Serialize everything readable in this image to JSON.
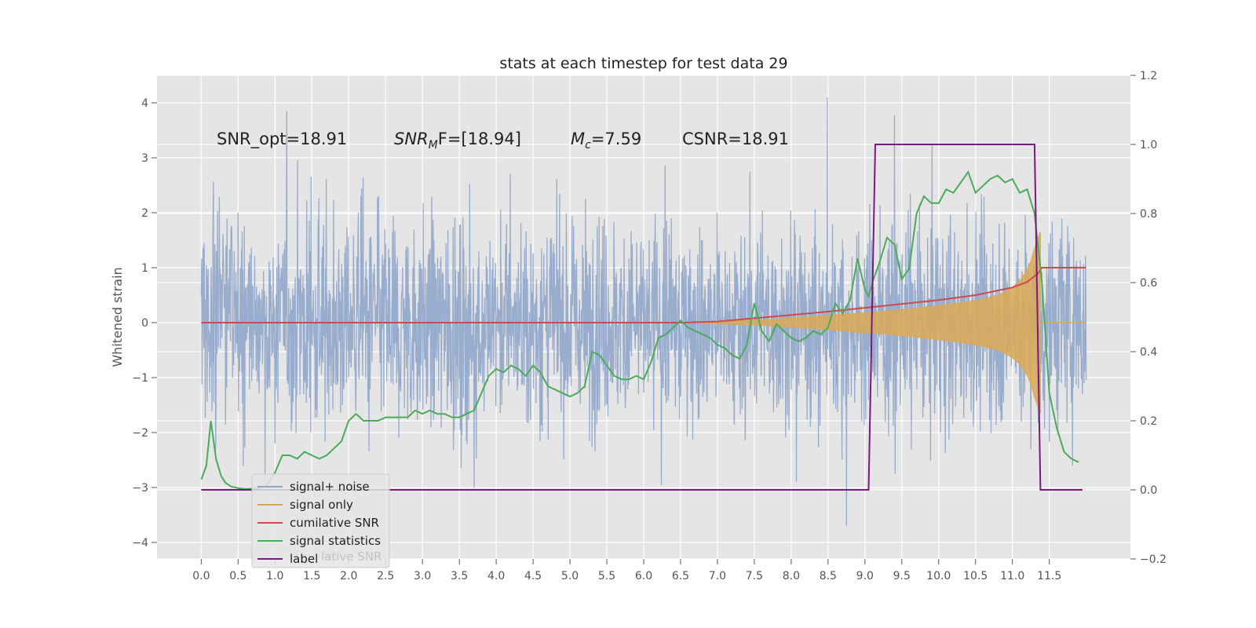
{
  "chart_data": {
    "type": "line",
    "title": "stats at each timestep for test data 29",
    "ylabel": "Whitened strain",
    "xlabel": "",
    "xlim": [
      -0.6,
      12.6
    ],
    "ylim": [
      -4.3,
      4.5
    ],
    "y2lim": [
      -0.2,
      1.2
    ],
    "grid": true,
    "xticks": [
      0.0,
      0.5,
      1.0,
      1.5,
      2.0,
      2.5,
      3.0,
      3.5,
      4.0,
      4.5,
      5.0,
      5.5,
      6.0,
      6.5,
      7.0,
      7.5,
      8.0,
      8.5,
      9.0,
      9.5,
      10.0,
      10.5,
      11.0,
      11.5
    ],
    "xtick_labels": [
      "0.0",
      "0.5",
      "1.0",
      "1.5",
      "2.0",
      "2.5",
      "3.0",
      "3.5",
      "4.0",
      "4.5",
      "5.0",
      "5.5",
      "6.0",
      "6.5",
      "7.0",
      "7.5",
      "8.0",
      "8.5",
      "9.0",
      "9.5",
      "10.0",
      "10.5",
      "11.0",
      "11.5"
    ],
    "yticks": [
      -4,
      -3,
      -2,
      -1,
      0,
      1,
      2,
      3,
      4
    ],
    "ytick_labels": [
      "−4",
      "−3",
      "−2",
      "−1",
      "0",
      "1",
      "2",
      "3",
      "4"
    ],
    "y2ticks": [
      -0.2,
      0.0,
      0.2,
      0.4,
      0.6,
      0.8,
      1.0,
      1.2
    ],
    "y2tick_labels": [
      "−0.2",
      "0.0",
      "0.2",
      "0.4",
      "0.6",
      "0.8",
      "1.0",
      "1.2"
    ],
    "annotations": {
      "snr_opt": "SNR_opt=18.91",
      "snr_mf_main": "SNR",
      "snr_mf_sub": "M",
      "snr_mf_rest": "F=[18.94]",
      "mc_main": "M",
      "mc_sub": "c",
      "mc_rest": "=7.59",
      "csnr": "CSNR=18.91"
    },
    "legend": {
      "position": "lower-left",
      "entries": [
        "signal+ noise",
        "signal only",
        "cumilative SNR",
        "signal statistics",
        "label"
      ],
      "ghost_text": "lative SNR"
    },
    "series": [
      {
        "name": "signal+ noise",
        "axis": "left",
        "color": "#8fa5cb",
        "style": "dense noise between about -2.9 and +2.9 with spikes up to 4.1 and down to -3.7"
      },
      {
        "name": "signal only",
        "axis": "left",
        "color": "#dba955",
        "envelope_x": [
          6.8,
          7.2,
          7.6,
          8.0,
          8.4,
          8.8,
          9.2,
          9.6,
          10.0,
          10.4,
          10.6,
          10.8,
          10.9,
          11.0,
          11.1,
          11.2,
          11.25,
          11.3,
          11.35,
          11.38
        ],
        "envelope_amp": [
          0.01,
          0.03,
          0.05,
          0.08,
          0.12,
          0.16,
          0.2,
          0.25,
          0.31,
          0.38,
          0.43,
          0.5,
          0.56,
          0.64,
          0.76,
          0.96,
          1.12,
          1.36,
          1.55,
          1.65
        ]
      },
      {
        "name": "cumilative SNR",
        "axis": "left",
        "color": "#cc4b4b",
        "x": [
          0.0,
          6.5,
          7.0,
          7.5,
          8.0,
          8.5,
          9.0,
          9.5,
          10.0,
          10.5,
          11.0,
          11.2,
          11.35,
          11.4,
          12.0
        ],
        "values": [
          0.0,
          0.0,
          0.02,
          0.08,
          0.14,
          0.2,
          0.27,
          0.34,
          0.41,
          0.5,
          0.64,
          0.74,
          0.9,
          1.0,
          1.0
        ]
      },
      {
        "name": "signal statistics",
        "axis": "right",
        "color": "#4cab5a",
        "x": [
          0.0,
          0.07,
          0.13,
          0.2,
          0.27,
          0.33,
          0.4,
          0.5,
          0.6,
          0.7,
          0.8,
          0.9,
          1.0,
          1.1,
          1.2,
          1.3,
          1.4,
          1.5,
          1.6,
          1.7,
          1.8,
          1.9,
          2.0,
          2.1,
          2.2,
          2.3,
          2.4,
          2.5,
          2.6,
          2.7,
          2.8,
          2.9,
          3.0,
          3.1,
          3.2,
          3.3,
          3.4,
          3.5,
          3.6,
          3.7,
          3.8,
          3.9,
          4.0,
          4.1,
          4.2,
          4.3,
          4.4,
          4.5,
          4.6,
          4.7,
          4.8,
          4.9,
          5.0,
          5.1,
          5.2,
          5.3,
          5.4,
          5.5,
          5.6,
          5.7,
          5.8,
          5.9,
          6.0,
          6.1,
          6.2,
          6.3,
          6.4,
          6.5,
          6.6,
          6.7,
          6.8,
          6.9,
          7.0,
          7.1,
          7.2,
          7.3,
          7.4,
          7.5,
          7.6,
          7.7,
          7.8,
          7.9,
          8.0,
          8.1,
          8.2,
          8.3,
          8.4,
          8.5,
          8.6,
          8.7,
          8.8,
          8.9,
          9.0,
          9.05,
          9.1,
          9.2,
          9.3,
          9.4,
          9.5,
          9.6,
          9.7,
          9.8,
          9.9,
          10.0,
          10.1,
          10.2,
          10.3,
          10.4,
          10.5,
          10.6,
          10.7,
          10.8,
          10.9,
          11.0,
          11.1,
          11.2,
          11.3,
          11.4,
          11.5,
          11.6,
          11.7,
          11.8,
          11.9
        ],
        "values": [
          0.03,
          0.07,
          0.2,
          0.09,
          0.04,
          0.02,
          0.01,
          0.005,
          0.003,
          0.004,
          0.006,
          0.015,
          0.05,
          0.1,
          0.1,
          0.09,
          0.11,
          0.1,
          0.09,
          0.1,
          0.12,
          0.14,
          0.2,
          0.22,
          0.2,
          0.2,
          0.2,
          0.21,
          0.21,
          0.21,
          0.21,
          0.23,
          0.22,
          0.23,
          0.22,
          0.22,
          0.21,
          0.21,
          0.22,
          0.23,
          0.28,
          0.33,
          0.35,
          0.34,
          0.36,
          0.35,
          0.33,
          0.36,
          0.34,
          0.3,
          0.29,
          0.28,
          0.27,
          0.28,
          0.3,
          0.4,
          0.39,
          0.36,
          0.33,
          0.32,
          0.32,
          0.33,
          0.32,
          0.37,
          0.44,
          0.45,
          0.47,
          0.49,
          0.47,
          0.46,
          0.45,
          0.44,
          0.42,
          0.41,
          0.39,
          0.38,
          0.42,
          0.54,
          0.46,
          0.43,
          0.48,
          0.46,
          0.44,
          0.43,
          0.44,
          0.46,
          0.45,
          0.47,
          0.54,
          0.51,
          0.55,
          0.67,
          0.58,
          0.56,
          0.6,
          0.66,
          0.73,
          0.71,
          0.61,
          0.64,
          0.8,
          0.85,
          0.83,
          0.83,
          0.87,
          0.86,
          0.89,
          0.92,
          0.86,
          0.88,
          0.9,
          0.91,
          0.89,
          0.9,
          0.86,
          0.87,
          0.8,
          0.6,
          0.28,
          0.18,
          0.11,
          0.09,
          0.08
        ]
      },
      {
        "name": "label",
        "axis": "right",
        "color": "#7a1a7a",
        "x": [
          0.0,
          9.05,
          9.14,
          11.3,
          11.38,
          11.95
        ],
        "values": [
          0.0,
          0.0,
          1.0,
          1.0,
          0.0,
          0.0
        ]
      }
    ]
  }
}
